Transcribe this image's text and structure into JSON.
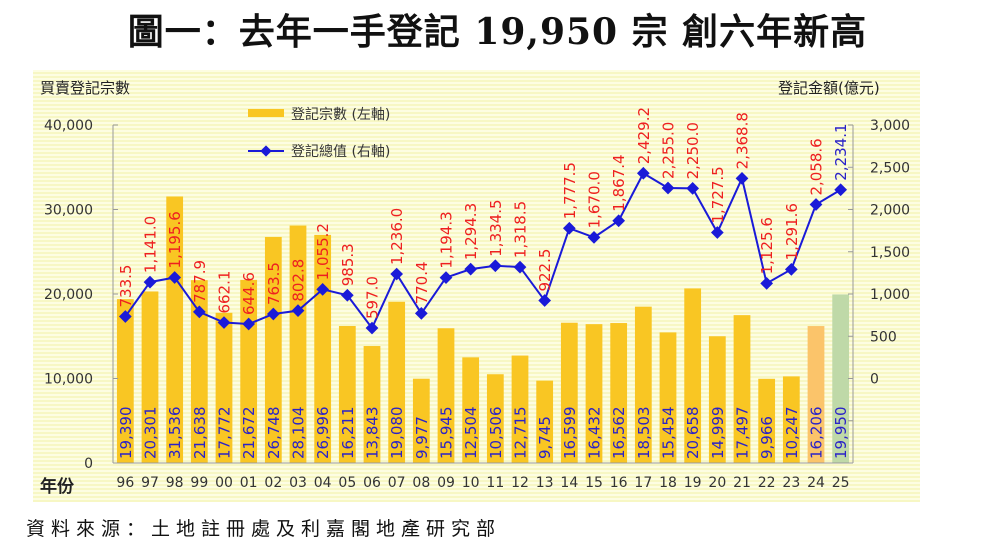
{
  "title": "圖一：去年一手登記 19,950 宗  創六年新高",
  "source": "資料來源：土地註冊處及利嘉閣地產研究部",
  "chart_data": {
    "type": "bar",
    "title": "圖一：去年一手登記 19,950 宗  創六年新高",
    "xlabel": "年份",
    "ylabel": "買賣登記宗數",
    "y2label": "登記金額(億元)",
    "ylim": [
      0,
      40000
    ],
    "y2lim": [
      -1000,
      3000
    ],
    "yticks": [
      "0",
      "10,000",
      "20,000",
      "30,000",
      "40,000"
    ],
    "y2ticks": [
      "0",
      "500",
      "1,000",
      "1,500",
      "2,000",
      "2,500",
      "3,000"
    ],
    "y2tick_values": [
      0,
      500,
      1000,
      1500,
      2000,
      2500,
      3000
    ],
    "ytick_values": [
      0,
      10000,
      20000,
      30000,
      40000
    ],
    "grid": false,
    "legend_position": "top-left",
    "categories": [
      "96",
      "97",
      "98",
      "99",
      "00",
      "01",
      "02",
      "03",
      "04",
      "05",
      "06",
      "07",
      "08",
      "09",
      "10",
      "11",
      "12",
      "13",
      "14",
      "15",
      "16",
      "17",
      "18",
      "19",
      "20",
      "21",
      "22",
      "23",
      "24",
      "25"
    ],
    "series": [
      {
        "name": "登記宗數 (左軸)",
        "type": "bar",
        "axis": "left",
        "color": "#F9C623",
        "values": [
          19390,
          20301,
          31536,
          21638,
          17772,
          21672,
          26748,
          28104,
          26996,
          16211,
          13843,
          19080,
          9977,
          15945,
          12504,
          10506,
          12715,
          9745,
          16599,
          16432,
          16562,
          18503,
          15454,
          20658,
          14999,
          17497,
          9966,
          10247,
          16206,
          19950
        ],
        "labels": [
          "19,390",
          "20,301",
          "31,536",
          "21,638",
          "17,772",
          "21,672",
          "26,748",
          "28,104",
          "26,996",
          "16,211",
          "13,843",
          "19,080",
          "9,977",
          "15,945",
          "12,504",
          "10,506",
          "12,715",
          "9,745",
          "16,599",
          "16,432",
          "16,562",
          "18,503",
          "15,454",
          "20,658",
          "14,999",
          "17,497",
          "9,966",
          "10,247",
          "16,206",
          "19,950"
        ],
        "highlight_colors": {
          "24": "#FBC46A",
          "25": "#BFD9A8"
        }
      },
      {
        "name": "登記總值 (右軸)",
        "type": "line",
        "axis": "right",
        "color": "#1a1ad8",
        "values": [
          733.5,
          1141.0,
          1195.6,
          787.9,
          662.1,
          644.6,
          763.5,
          802.8,
          1055.2,
          985.3,
          597.0,
          1236.0,
          770.4,
          1194.3,
          1294.3,
          1334.5,
          1318.5,
          922.5,
          1777.5,
          1670.0,
          1867.4,
          2429.2,
          2255.0,
          2250.0,
          1727.5,
          2368.8,
          1125.6,
          1291.6,
          2058.6,
          2234.1
        ],
        "labels": [
          "733.5",
          "1,141.0",
          "1,195.6",
          "787.9",
          "662.1",
          "644.6",
          "763.5",
          "802.8",
          "1,055.2",
          "985.3",
          "597.0",
          "1,236.0",
          "770.4",
          "1,194.3",
          "1,294.3",
          "1,334.5",
          "1,318.5",
          "922.5",
          "1,777.5",
          "1,670.0",
          "1,867.4",
          "2,429.2",
          "2,255.0",
          "2,250.0",
          "1,727.5",
          "2,368.8",
          "1,125.6",
          "1,291.6",
          "2,058.6",
          "2,234.1"
        ]
      }
    ],
    "label_colors": {
      "bar_label": "#2a22c8",
      "line_label": "#ee2020",
      "line_label_last": "#2a22c8"
    }
  }
}
